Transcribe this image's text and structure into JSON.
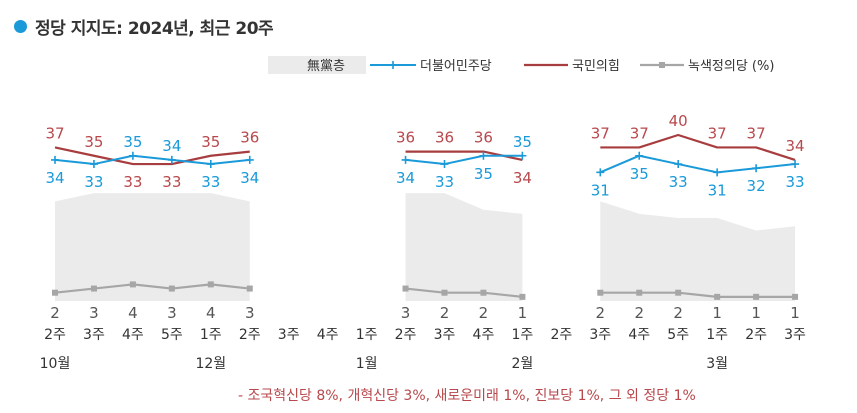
{
  "title": "정당 지지도: 2024년, 최근 20주",
  "footnote": "- 조국혁신당 8%, 개혁신당 3%, 새로운미래 1%, 진보당 1%, 그 외 정당 1%",
  "colors": {
    "title_dot": "#1a9ad9",
    "undecided": "#ebebeb",
    "democratic": "#1a9ad9",
    "ppp": "#a83d3f",
    "green": "#a6a6a6",
    "label_ppp": "#b8484c",
    "label_democratic": "#1a9ad9",
    "label_green": "#555555",
    "axis_text": "#333333",
    "footnote": "#b8484c"
  },
  "chart_data": {
    "type": "line",
    "unit": "(%)",
    "ylim": [
      0,
      45
    ],
    "grid": false,
    "legend_position": "top-right",
    "legend": [
      "無黨층",
      "더불어민주당",
      "국민의힘",
      "녹색정의당"
    ],
    "x_week_labels": [
      "2주",
      "3주",
      "4주",
      "5주",
      "1주",
      "2주",
      "3주",
      "4주",
      "1주",
      "2주",
      "3주",
      "4주",
      "1주",
      "2주",
      "3주",
      "4주",
      "5주",
      "1주",
      "2주",
      "3주"
    ],
    "month_labels": [
      {
        "index": 0,
        "label": "10월"
      },
      {
        "index": 4,
        "label": "12월"
      },
      {
        "index": 8,
        "label": "1월"
      },
      {
        "index": 12,
        "label": "2월"
      },
      {
        "index": 17,
        "label": "3월"
      }
    ],
    "series": [
      {
        "name": "無黨층",
        "type": "area",
        "values": [
          24,
          26,
          26,
          26,
          26,
          24,
          null,
          null,
          null,
          26,
          26,
          22,
          21,
          null,
          24,
          21,
          20,
          20,
          17,
          18
        ]
      },
      {
        "name": "더불어민주당",
        "values": [
          34,
          33,
          35,
          34,
          33,
          34,
          null,
          null,
          null,
          34,
          33,
          35,
          35,
          null,
          31,
          35,
          33,
          31,
          32,
          33
        ],
        "labels": [
          34,
          33,
          35,
          34,
          33,
          34,
          null,
          null,
          null,
          34,
          33,
          35,
          35,
          null,
          31,
          35,
          33,
          31,
          32,
          33
        ]
      },
      {
        "name": "국민의힘",
        "values": [
          37,
          35,
          33,
          33,
          35,
          36,
          null,
          null,
          null,
          36,
          36,
          36,
          34,
          null,
          37,
          37,
          40,
          37,
          37,
          34
        ],
        "labels": [
          37,
          35,
          33,
          33,
          35,
          36,
          null,
          null,
          null,
          36,
          36,
          36,
          34,
          null,
          37,
          37,
          40,
          37,
          37,
          34
        ]
      },
      {
        "name": "녹색정의당",
        "values": [
          2,
          3,
          4,
          3,
          4,
          3,
          null,
          null,
          null,
          3,
          2,
          2,
          1,
          null,
          2,
          2,
          2,
          1,
          1,
          1
        ],
        "labels": [
          2,
          3,
          4,
          3,
          4,
          3,
          null,
          null,
          null,
          3,
          2,
          2,
          1,
          null,
          2,
          2,
          2,
          1,
          1,
          1
        ]
      }
    ]
  }
}
